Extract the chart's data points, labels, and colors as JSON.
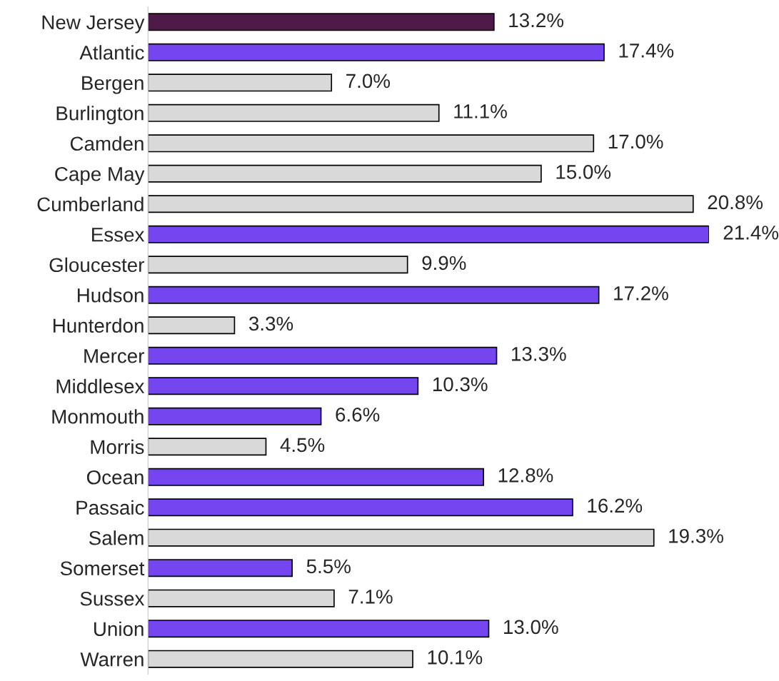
{
  "chart_data": {
    "type": "bar",
    "orientation": "horizontal",
    "categories": [
      "New Jersey",
      "Atlantic",
      "Bergen",
      "Burlington",
      "Camden",
      "Cape May",
      "Cumberland",
      "Essex",
      "Gloucester",
      "Hudson",
      "Hunterdon",
      "Mercer",
      "Middlesex",
      "Monmouth",
      "Morris",
      "Ocean",
      "Passaic",
      "Salem",
      "Somerset",
      "Sussex",
      "Union",
      "Warren"
    ],
    "values": [
      13.2,
      17.4,
      7.0,
      11.1,
      17.0,
      15.0,
      20.8,
      21.4,
      9.9,
      17.2,
      3.3,
      13.3,
      10.3,
      6.6,
      4.5,
      12.8,
      16.2,
      19.3,
      5.5,
      7.1,
      13.0,
      10.1
    ],
    "value_labels": [
      "13.2%",
      "17.4%",
      "7.0%",
      "11.1%",
      "17.0%",
      "15.0%",
      "20.8%",
      "21.4%",
      "9.9%",
      "17.2%",
      "3.3%",
      "13.3%",
      "10.3%",
      "6.6%",
      "4.5%",
      "12.8%",
      "16.2%",
      "19.3%",
      "5.5%",
      "7.1%",
      "13.0%",
      "10.1%"
    ],
    "colors": [
      "#4e1a4a",
      "#7546f0",
      "#d9d9d9",
      "#d9d9d9",
      "#d9d9d9",
      "#d9d9d9",
      "#d9d9d9",
      "#7546f0",
      "#d9d9d9",
      "#7546f0",
      "#d9d9d9",
      "#7546f0",
      "#7546f0",
      "#7546f0",
      "#d9d9d9",
      "#7546f0",
      "#7546f0",
      "#d9d9d9",
      "#7546f0",
      "#d9d9d9",
      "#7546f0",
      "#d9d9d9"
    ],
    "tick_labels": "y",
    "grid": false,
    "legend": false
  }
}
